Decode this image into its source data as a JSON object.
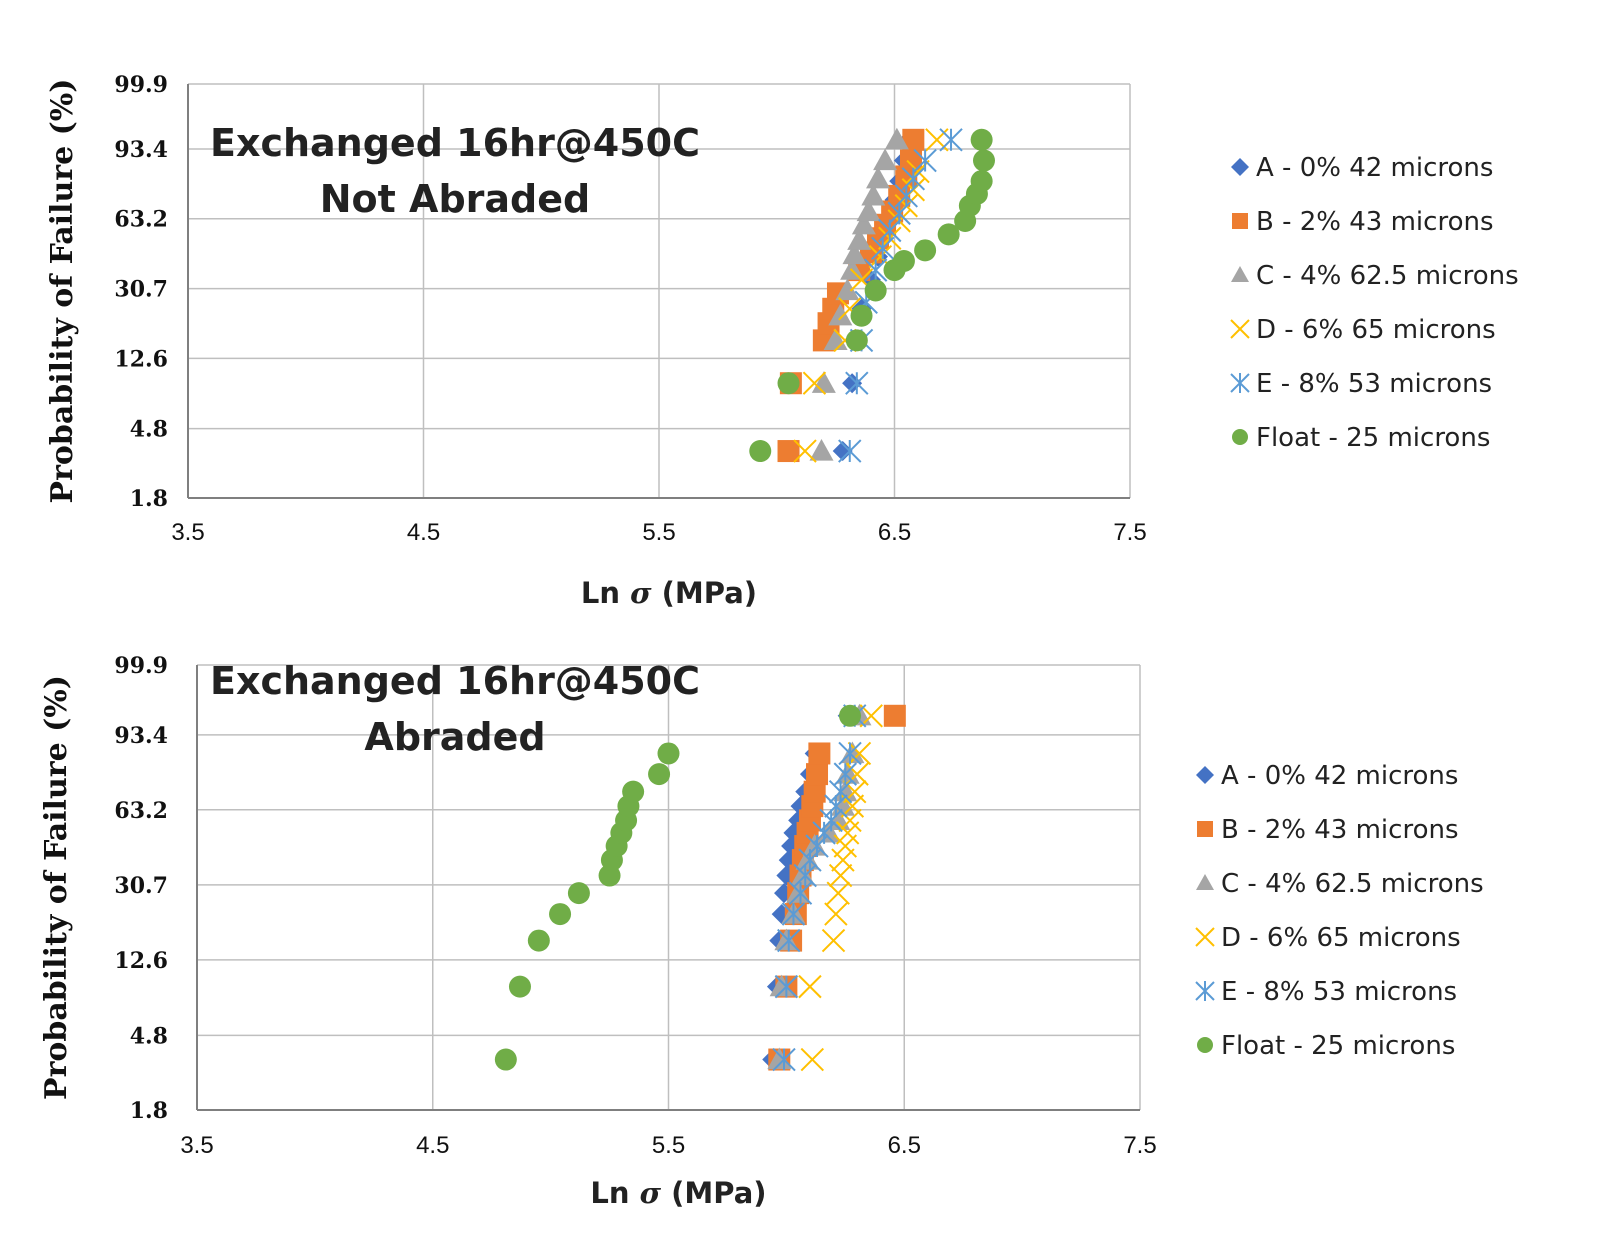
{
  "colors": {
    "A": "#4472c4",
    "B": "#ed7d31",
    "C": "#a5a5a5",
    "D": "#ffc000",
    "E": "#5b9bd5",
    "Float": "#70ad47",
    "grid": "#bfbfbf",
    "axis": "#7f7f7f"
  },
  "chart_data": [
    {
      "type": "scatter",
      "annotation": [
        "Exchanged 16hr@450C",
        "Not Abraded"
      ],
      "ylabel": "Probability of Failure (%)",
      "xlabel_prefix": "Ln ",
      "xlabel_symbol": "σ",
      "xlabel_suffix": " (MPa)",
      "x_ticks": [
        "3.5",
        "4.5",
        "5.5",
        "6.5",
        "7.5"
      ],
      "y_ticks": [
        "99.9",
        "93.4",
        "63.2",
        "30.7",
        "12.6",
        "4.8",
        "1.8"
      ],
      "xlim": [
        3.5,
        7.5
      ],
      "grid": true,
      "legend_position": "right",
      "series": [
        {
          "name": "A - 0% 42 microns",
          "marker": "diamond",
          "color_key": "A",
          "points": [
            [
              6.28,
              3.5
            ],
            [
              6.32,
              9.0
            ],
            [
              6.34,
              16.0
            ],
            [
              6.36,
              24.0
            ],
            [
              6.4,
              34.0
            ],
            [
              6.43,
              44.0
            ],
            [
              6.45,
              53.0
            ],
            [
              6.48,
              64.0
            ],
            [
              6.5,
              73.0
            ],
            [
              6.52,
              82.0
            ],
            [
              6.54,
              90.0
            ],
            [
              6.56,
              95.5
            ]
          ]
        },
        {
          "name": "B - 2% 43 microns",
          "marker": "square",
          "color_key": "B",
          "points": [
            [
              6.05,
              3.5
            ],
            [
              6.06,
              9.0
            ],
            [
              6.2,
              16.0
            ],
            [
              6.22,
              20.0
            ],
            [
              6.24,
              24.0
            ],
            [
              6.26,
              29.0
            ],
            [
              6.35,
              38.0
            ],
            [
              6.4,
              46.0
            ],
            [
              6.43,
              53.0
            ],
            [
              6.46,
              60.0
            ],
            [
              6.49,
              67.0
            ],
            [
              6.52,
              75.0
            ],
            [
              6.55,
              84.0
            ],
            [
              6.57,
              90.0
            ],
            [
              6.58,
              95.5
            ]
          ]
        },
        {
          "name": "C - 4% 62.5 microns",
          "marker": "triangle",
          "color_key": "C",
          "points": [
            [
              6.19,
              3.5
            ],
            [
              6.2,
              9.0
            ],
            [
              6.25,
              16.0
            ],
            [
              6.27,
              22.0
            ],
            [
              6.3,
              30.0
            ],
            [
              6.32,
              38.0
            ],
            [
              6.33,
              45.0
            ],
            [
              6.35,
              52.0
            ],
            [
              6.37,
              60.0
            ],
            [
              6.39,
              67.0
            ],
            [
              6.41,
              75.0
            ],
            [
              6.43,
              83.0
            ],
            [
              6.46,
              90.0
            ],
            [
              6.51,
              95.5
            ]
          ]
        },
        {
          "name": "D - 6% 65 microns",
          "marker": "x",
          "color_key": "D",
          "points": [
            [
              6.12,
              3.5
            ],
            [
              6.16,
              9.0
            ],
            [
              6.29,
              16.0
            ],
            [
              6.31,
              24.0
            ],
            [
              6.36,
              34.0
            ],
            [
              6.44,
              44.0
            ],
            [
              6.48,
              53.0
            ],
            [
              6.52,
              62.0
            ],
            [
              6.55,
              70.0
            ],
            [
              6.58,
              78.0
            ],
            [
              6.6,
              86.0
            ],
            [
              6.68,
              95.5
            ]
          ]
        },
        {
          "name": "E - 8% 53 microns",
          "marker": "star",
          "color_key": "E",
          "points": [
            [
              6.31,
              3.5
            ],
            [
              6.34,
              9.0
            ],
            [
              6.36,
              16.0
            ],
            [
              6.38,
              26.0
            ],
            [
              6.42,
              38.0
            ],
            [
              6.45,
              48.0
            ],
            [
              6.48,
              57.0
            ],
            [
              6.52,
              66.0
            ],
            [
              6.55,
              75.0
            ],
            [
              6.58,
              83.0
            ],
            [
              6.63,
              90.0
            ],
            [
              6.74,
              95.5
            ]
          ]
        },
        {
          "name": "Float - 25 microns",
          "marker": "circle",
          "color_key": "Float",
          "points": [
            [
              5.93,
              3.5
            ],
            [
              6.05,
              9.0
            ],
            [
              6.34,
              16.0
            ],
            [
              6.36,
              22.0
            ],
            [
              6.42,
              30.0
            ],
            [
              6.5,
              38.0
            ],
            [
              6.54,
              42.0
            ],
            [
              6.63,
              47.0
            ],
            [
              6.73,
              55.0
            ],
            [
              6.8,
              62.0
            ],
            [
              6.82,
              70.0
            ],
            [
              6.85,
              76.0
            ],
            [
              6.87,
              82.0
            ],
            [
              6.88,
              90.0
            ],
            [
              6.87,
              95.5
            ]
          ]
        }
      ]
    },
    {
      "type": "scatter",
      "annotation": [
        "Exchanged 16hr@450C",
        "Abraded"
      ],
      "ylabel": "Probability of Failure (%)",
      "xlabel_prefix": "Ln ",
      "xlabel_symbol": "σ",
      "xlabel_suffix": " (MPa)",
      "x_ticks": [
        "3.5",
        "4.5",
        "5.5",
        "6.5",
        "7.5"
      ],
      "y_ticks": [
        "99.9",
        "93.4",
        "63.2",
        "30.7",
        "12.6",
        "4.8",
        "1.8"
      ],
      "xlim": [
        3.5,
        7.5
      ],
      "grid": true,
      "legend_position": "right",
      "series": [
        {
          "name": "A - 0% 42 microns",
          "marker": "diamond",
          "color_key": "A",
          "points": [
            [
              5.94,
              3.5
            ],
            [
              5.96,
              9.0
            ],
            [
              5.97,
              16.0
            ],
            [
              5.98,
              22.0
            ],
            [
              5.99,
              28.0
            ],
            [
              6.0,
              34.0
            ],
            [
              6.01,
              40.0
            ],
            [
              6.02,
              46.0
            ],
            [
              6.03,
              52.0
            ],
            [
              6.05,
              58.0
            ],
            [
              6.06,
              65.0
            ],
            [
              6.08,
              72.0
            ],
            [
              6.1,
              80.0
            ],
            [
              6.12,
              88.0
            ],
            [
              6.26,
              97.0
            ]
          ]
        },
        {
          "name": "B - 2% 43 microns",
          "marker": "square",
          "color_key": "B",
          "points": [
            [
              5.97,
              3.5
            ],
            [
              6.0,
              9.0
            ],
            [
              6.02,
              16.0
            ],
            [
              6.04,
              22.0
            ],
            [
              6.05,
              28.0
            ],
            [
              6.06,
              34.0
            ],
            [
              6.07,
              40.0
            ],
            [
              6.08,
              46.0
            ],
            [
              6.09,
              52.0
            ],
            [
              6.1,
              58.0
            ],
            [
              6.11,
              65.0
            ],
            [
              6.12,
              72.0
            ],
            [
              6.13,
              80.0
            ],
            [
              6.14,
              88.0
            ],
            [
              6.46,
              97.0
            ]
          ]
        },
        {
          "name": "C - 4% 62.5 microns",
          "marker": "triangle",
          "color_key": "C",
          "points": [
            [
              5.97,
              3.5
            ],
            [
              5.98,
              9.0
            ],
            [
              6.0,
              16.0
            ],
            [
              6.03,
              22.0
            ],
            [
              6.05,
              28.0
            ],
            [
              6.07,
              34.0
            ],
            [
              6.09,
              40.0
            ],
            [
              6.12,
              46.0
            ],
            [
              6.18,
              52.0
            ],
            [
              6.22,
              58.0
            ],
            [
              6.24,
              65.0
            ],
            [
              6.25,
              72.0
            ],
            [
              6.26,
              80.0
            ],
            [
              6.28,
              88.0
            ],
            [
              6.31,
              97.0
            ]
          ]
        },
        {
          "name": "D - 6% 65 microns",
          "marker": "x",
          "color_key": "D",
          "points": [
            [
              6.11,
              3.5
            ],
            [
              6.1,
              9.0
            ],
            [
              6.2,
              16.0
            ],
            [
              6.21,
              22.0
            ],
            [
              6.22,
              28.0
            ],
            [
              6.23,
              34.0
            ],
            [
              6.24,
              40.0
            ],
            [
              6.25,
              46.0
            ],
            [
              6.26,
              52.0
            ],
            [
              6.27,
              58.0
            ],
            [
              6.28,
              65.0
            ],
            [
              6.29,
              72.0
            ],
            [
              6.3,
              80.0
            ],
            [
              6.31,
              88.0
            ],
            [
              6.36,
              97.0
            ]
          ]
        },
        {
          "name": "E - 8% 53 microns",
          "marker": "star",
          "color_key": "E",
          "points": [
            [
              5.99,
              3.5
            ],
            [
              6.0,
              9.0
            ],
            [
              6.01,
              16.0
            ],
            [
              6.03,
              22.0
            ],
            [
              6.06,
              28.0
            ],
            [
              6.08,
              34.0
            ],
            [
              6.1,
              40.0
            ],
            [
              6.13,
              46.0
            ],
            [
              6.16,
              52.0
            ],
            [
              6.19,
              58.0
            ],
            [
              6.21,
              65.0
            ],
            [
              6.23,
              72.0
            ],
            [
              6.25,
              80.0
            ],
            [
              6.27,
              88.0
            ],
            [
              6.29,
              97.0
            ]
          ]
        },
        {
          "name": "Float - 25 microns",
          "marker": "circle",
          "color_key": "Float",
          "points": [
            [
              4.81,
              3.5
            ],
            [
              4.87,
              9.0
            ],
            [
              4.95,
              16.0
            ],
            [
              5.04,
              22.0
            ],
            [
              5.12,
              28.0
            ],
            [
              5.25,
              34.0
            ],
            [
              5.26,
              40.0
            ],
            [
              5.28,
              46.0
            ],
            [
              5.3,
              52.0
            ],
            [
              5.32,
              58.0
            ],
            [
              5.33,
              65.0
            ],
            [
              5.35,
              72.0
            ],
            [
              5.46,
              80.0
            ],
            [
              5.5,
              88.0
            ],
            [
              6.27,
              97.0
            ]
          ]
        }
      ]
    }
  ]
}
